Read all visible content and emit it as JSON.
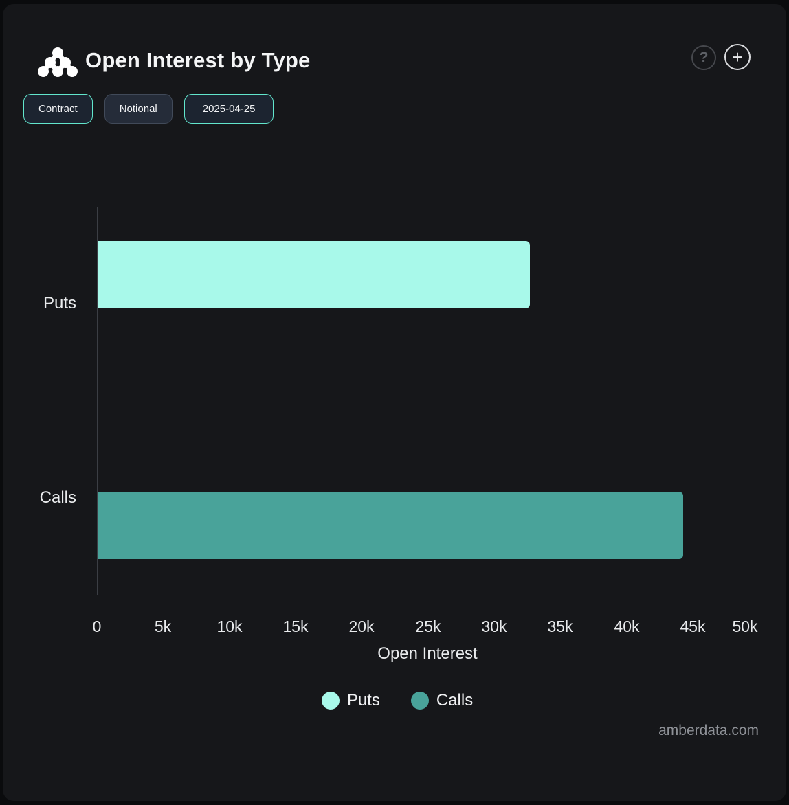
{
  "header": {
    "title": "Open Interest by Type",
    "help_label": "?",
    "add_label": "+"
  },
  "toolbar": {
    "buttons": [
      {
        "label": "Contract",
        "active": true
      },
      {
        "label": "Notional",
        "active": false
      },
      {
        "label": "2025-04-25",
        "active": true
      }
    ]
  },
  "chart_data": {
    "type": "bar",
    "orientation": "horizontal",
    "title": "Open Interest by Type",
    "categories": [
      "Puts",
      "Calls"
    ],
    "series": [
      {
        "name": "Puts",
        "value": 32700,
        "color": "#a8f9ea"
      },
      {
        "name": "Calls",
        "value": 44300,
        "color": "#49a39a"
      }
    ],
    "xlabel": "Open Interest",
    "xlim": [
      0,
      50000
    ],
    "x_ticks": [
      "0",
      "5k",
      "10k",
      "15k",
      "20k",
      "25k",
      "30k",
      "35k",
      "40k",
      "45k",
      "50k"
    ],
    "grid": false,
    "legend": [
      {
        "label": "Puts",
        "color": "#a8f9ea"
      },
      {
        "label": "Calls",
        "color": "#49a39a"
      }
    ],
    "legend_position": "bottom"
  },
  "footer": {
    "watermark": "amberdata.com"
  },
  "colors": {
    "background": "#16171a",
    "accent_mint": "#62e6cc",
    "puts_bar": "#a8f9ea",
    "calls_bar": "#49a39a",
    "axis_line": "#3b3e44",
    "text": "#f4f5f6"
  }
}
